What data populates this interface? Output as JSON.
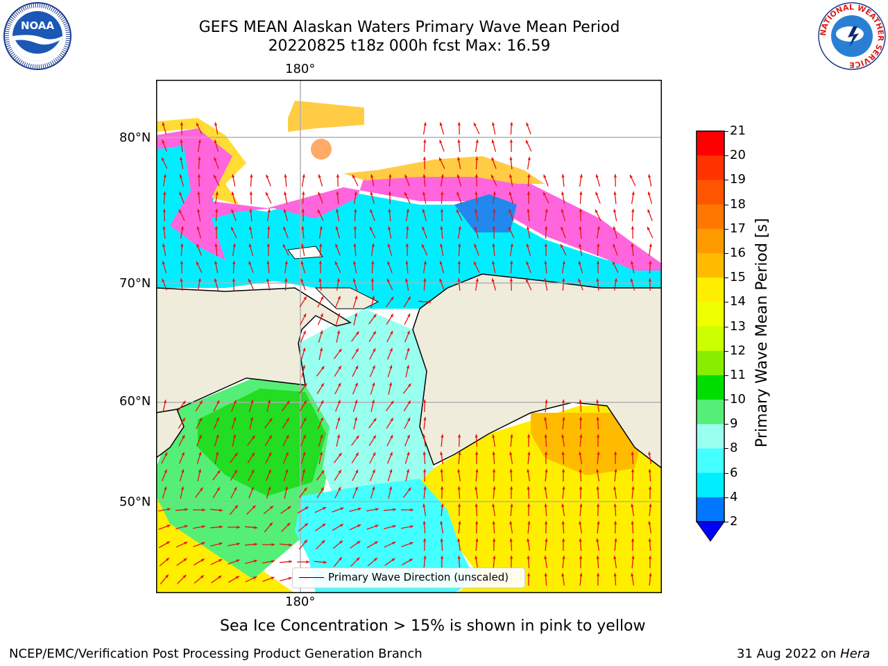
{
  "title": {
    "line1": "GEFS MEAN Alaskan Waters Primary Wave Mean Period",
    "line2": "20220825 t18z 000h fcst   Max: 16.59"
  },
  "map": {
    "lon_label_top": "180°",
    "lon_label_bottom": "180°",
    "lat_labels": [
      "80°N",
      "70°N",
      "60°N",
      "50°N"
    ],
    "legend_label": "Primary Wave Direction (unscaled)",
    "arrow_color": "#e8120c",
    "land_color": "#efecdc",
    "grid_color": "#b0b0b0"
  },
  "colorbar": {
    "label": "Primary Wave Mean Period [s]",
    "ticks": [
      "21",
      "20",
      "19",
      "18",
      "17",
      "16",
      "15",
      "14",
      "13",
      "12",
      "11",
      "10",
      "9",
      "8",
      "6",
      "4",
      "2"
    ],
    "colors_top_to_bottom": [
      "#ff0000",
      "#ff3300",
      "#ff5500",
      "#ff7700",
      "#ff9900",
      "#ffbb00",
      "#ffee00",
      "#eeff00",
      "#ccff00",
      "#88ee00",
      "#00dd00",
      "#55ee77",
      "#99ffee",
      "#44ffff",
      "#00eeff",
      "#0077ff"
    ],
    "extend_color": "#0000ff"
  },
  "subnote": "Sea Ice Concentration > 15% is shown in pink to yellow",
  "footer": {
    "left": "NCEP/EMC/Verification Post Processing Product Generation Branch",
    "right_prefix": "31 Aug 2022 on ",
    "right_machine": "Hera"
  },
  "logos": {
    "left": "NOAA",
    "right_ring": "NATIONAL WEATHER SERVICE"
  }
}
